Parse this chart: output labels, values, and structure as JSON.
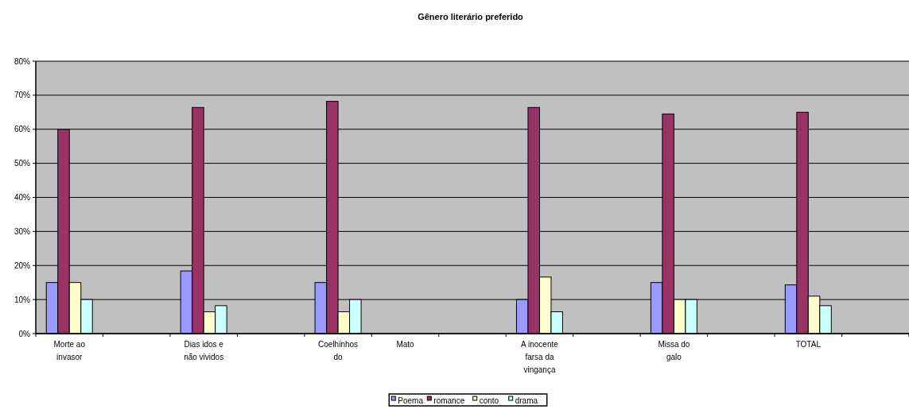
{
  "chart_data": {
    "type": "bar",
    "title": "Gênero literário preferido",
    "categories": [
      "Morte ao invasor",
      null,
      "Dias idos e não vividos",
      null,
      "Coelhinhos do",
      "Mato",
      null,
      "A inocente farsa da vingança",
      null,
      "Missa do galo",
      null,
      "TOTAL",
      null
    ],
    "series": [
      {
        "name": "Poema",
        "color": "#9999ff",
        "values": [
          15,
          null,
          18.4,
          null,
          15,
          null,
          null,
          10,
          null,
          15,
          null,
          14.3,
          null
        ]
      },
      {
        "name": "romance",
        "color": "#993366",
        "values": [
          60,
          null,
          66.4,
          null,
          68.2,
          null,
          null,
          66.4,
          null,
          64.5,
          null,
          65,
          null
        ]
      },
      {
        "name": "conto",
        "color": "#ffffcc",
        "values": [
          15,
          null,
          6.4,
          null,
          6.4,
          null,
          null,
          16.6,
          null,
          10,
          null,
          11,
          null
        ]
      },
      {
        "name": "drama",
        "color": "#ccffff",
        "values": [
          10,
          null,
          8.2,
          null,
          10,
          null,
          null,
          6.4,
          null,
          10,
          null,
          8.2,
          null
        ]
      }
    ],
    "ylim": [
      0,
      80
    ],
    "yticks": [
      {
        "value": 0,
        "label": "0%"
      },
      {
        "value": 10,
        "label": "10%"
      },
      {
        "value": 20,
        "label": "20%"
      },
      {
        "value": 30,
        "label": "30%"
      },
      {
        "value": 40,
        "label": "40%"
      },
      {
        "value": 50,
        "label": "50%"
      },
      {
        "value": 60,
        "label": "60%"
      },
      {
        "value": 70,
        "label": "70%"
      },
      {
        "value": 80,
        "label": "80%"
      }
    ],
    "grid": "y",
    "legend": "bottom"
  }
}
